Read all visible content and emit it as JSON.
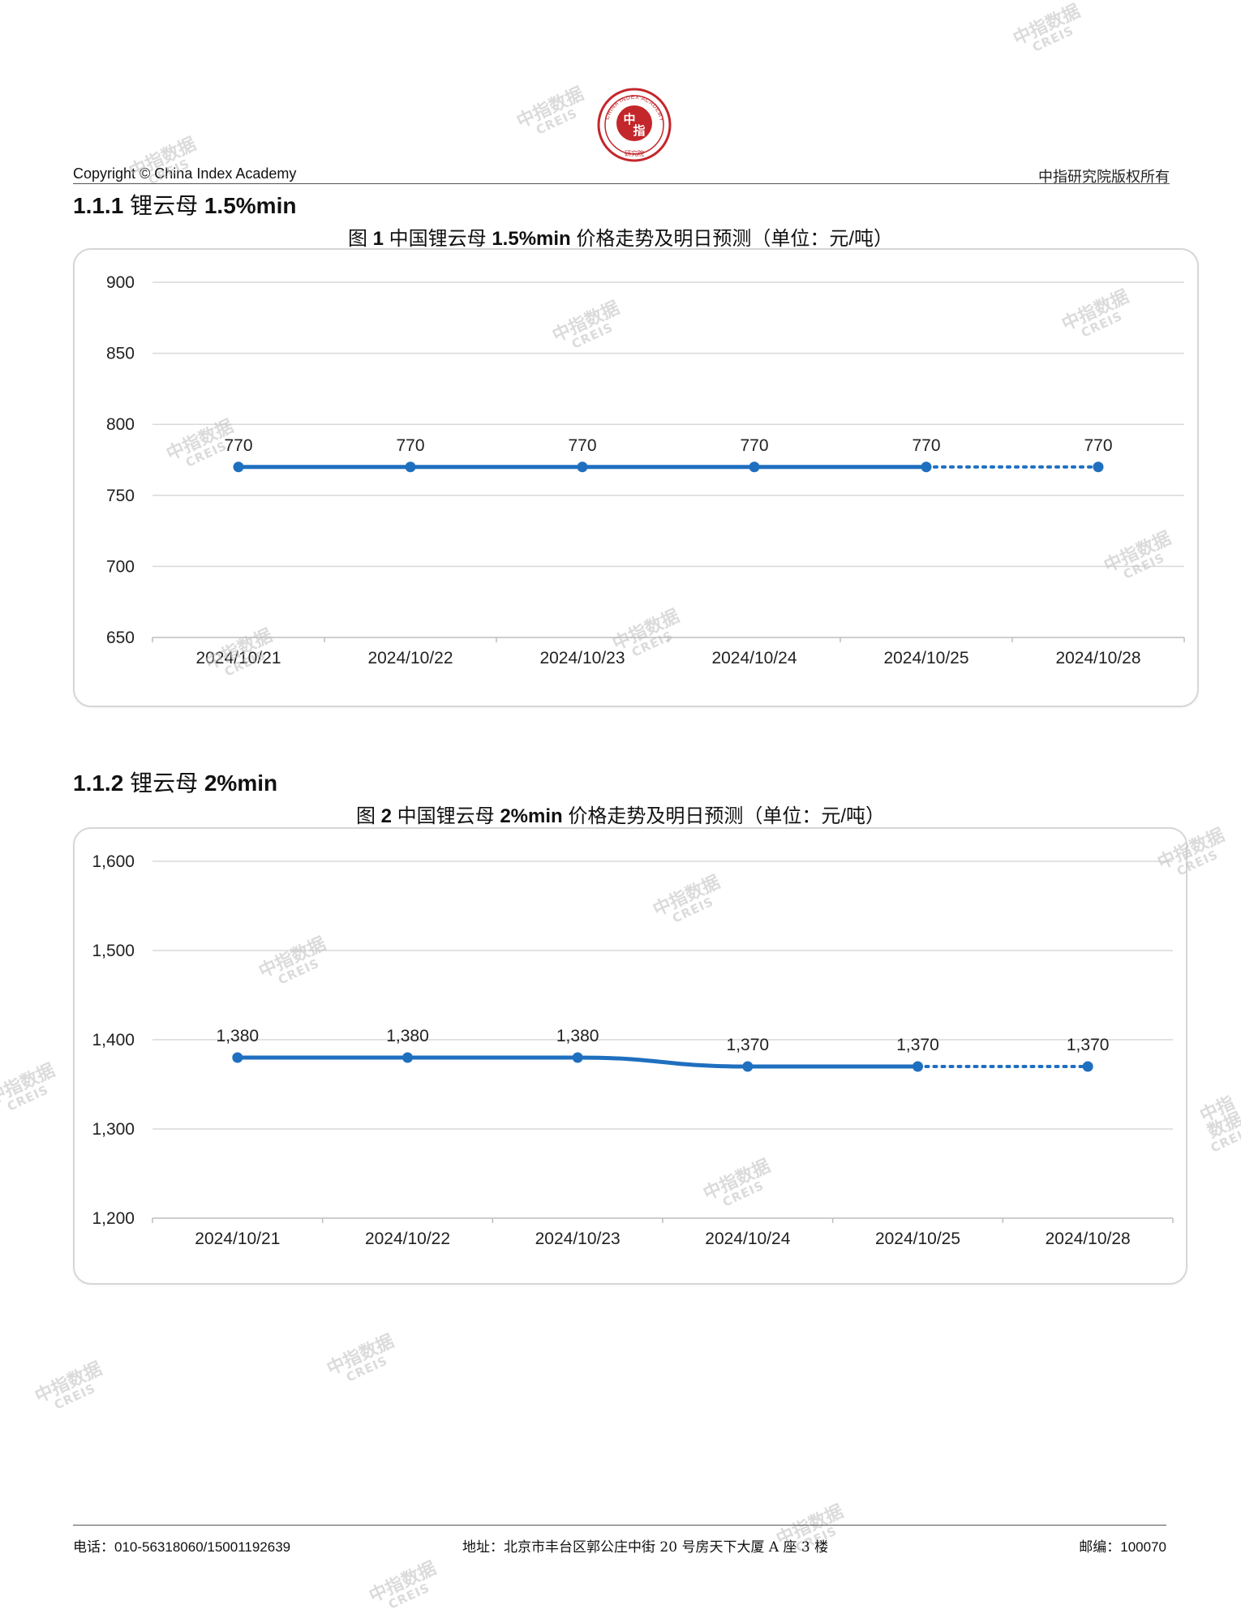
{
  "header": {
    "copyright": "Copyright © China Index Academy",
    "rights": "中指研究院版权所有",
    "logo_text_outer": "CHINA INDEX ACADEMY",
    "logo_text_inner": "中",
    "logo_text_inner2": "指",
    "logo_text_bottom": "研究院"
  },
  "sections": [
    {
      "heading_num": "1.1.1",
      "heading_cn": "锂云母",
      "heading_en": "1.5%min",
      "fig_prefix": "图",
      "fig_num": "1",
      "fig_cn1": "中国锂云母",
      "fig_grade": "1.5%min",
      "fig_cn2": "价格走势及明日预测（单位：元/",
      "fig_unit_tail": "吨）"
    },
    {
      "heading_num": "1.1.2",
      "heading_cn": "锂云母",
      "heading_en": "2%min",
      "fig_prefix": "图",
      "fig_num": "2",
      "fig_cn1": "中国锂云母",
      "fig_grade": "2%min",
      "fig_cn2": "价格走势及明日预测（单位：元/",
      "fig_unit_tail": "吨）"
    }
  ],
  "chart_data": [
    {
      "type": "line",
      "categories": [
        "2024/10/21",
        "2024/10/22",
        "2024/10/23",
        "2024/10/24",
        "2024/10/25",
        "2024/10/28"
      ],
      "values": [
        770,
        770,
        770,
        770,
        770,
        770
      ],
      "value_labels": [
        "770",
        "770",
        "770",
        "770",
        "770",
        "770"
      ],
      "forecast_from_index": 4,
      "ylim": [
        650,
        900
      ],
      "yticks": [
        900,
        850,
        800,
        750,
        700,
        650
      ],
      "ytick_labels": [
        "900",
        "850",
        "800",
        "750",
        "700",
        "650"
      ],
      "grid": true,
      "color": "#1f6fbf"
    },
    {
      "type": "line",
      "categories": [
        "2024/10/21",
        "2024/10/22",
        "2024/10/23",
        "2024/10/24",
        "2024/10/25",
        "2024/10/28"
      ],
      "values": [
        1380,
        1380,
        1380,
        1370,
        1370,
        1370
      ],
      "value_labels": [
        "1,380",
        "1,380",
        "1,380",
        "1,370",
        "1,370",
        "1,370"
      ],
      "forecast_from_index": 4,
      "ylim": [
        1200,
        1600
      ],
      "yticks": [
        1600,
        1500,
        1400,
        1300,
        1200
      ],
      "ytick_labels": [
        "1,600",
        "1,500",
        "1,400",
        "1,300",
        "1,200"
      ],
      "grid": true,
      "color": "#1f6fbf"
    }
  ],
  "footer": {
    "phone": "电话：010-56318060/15001192639",
    "address": "地址：北京市丰台区郭公庄中街 20 号房天下大厦 A 座 3 楼",
    "postcode": "邮编：100070"
  },
  "watermark": {
    "cn": "中指数据",
    "en": "CREIS"
  }
}
